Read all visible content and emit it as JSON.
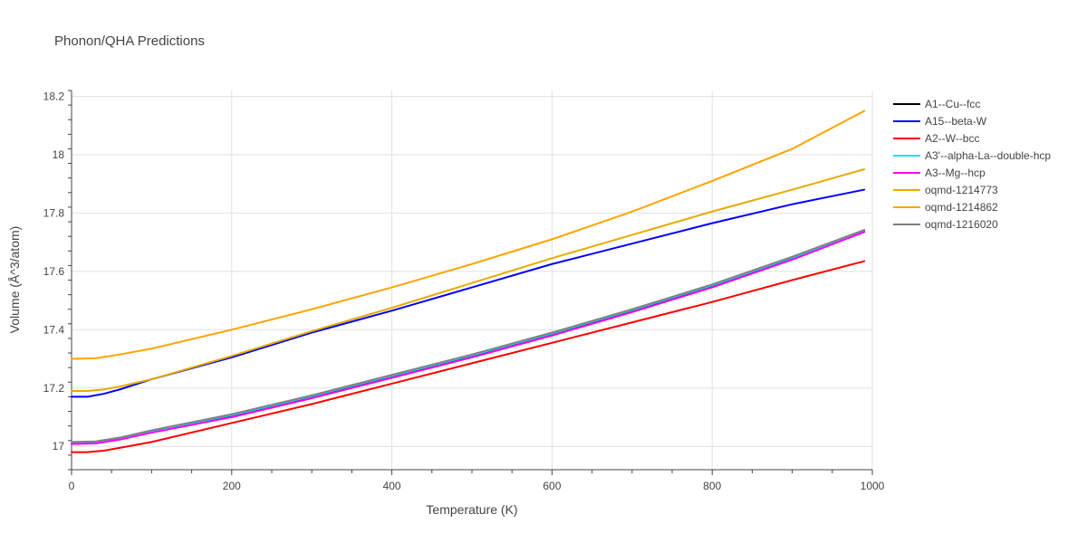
{
  "chart_data": {
    "type": "line",
    "title": "Phonon/QHA Predictions",
    "xlabel": "Temperature (K)",
    "ylabel": "Volume (Å^3/atom)",
    "xlim": [
      0,
      1000
    ],
    "ylim": [
      16.92,
      18.22
    ],
    "x_ticks": [
      0,
      200,
      400,
      600,
      800,
      1000
    ],
    "x_tick_labels": [
      "0",
      "200",
      "400",
      "600",
      "800",
      "1000"
    ],
    "y_ticks": [
      17.0,
      17.2,
      17.4,
      17.6,
      17.8,
      18.0,
      18.2
    ],
    "y_tick_labels": [
      "17",
      "17.2",
      "17.4",
      "17.6",
      "17.8",
      "18",
      "18.2"
    ],
    "grid": true,
    "legend_position": "right",
    "series": [
      {
        "name": "A1--Cu--fcc",
        "color": "#000000",
        "x": [
          0,
          30,
          60,
          100,
          200,
          300,
          400,
          500,
          600,
          700,
          800,
          900,
          990
        ],
        "y": [
          17.01,
          17.012,
          17.025,
          17.05,
          17.105,
          17.17,
          17.24,
          17.31,
          17.385,
          17.465,
          17.55,
          17.645,
          17.735
        ]
      },
      {
        "name": "A15--beta-W",
        "color": "#0000ff",
        "x": [
          0,
          20,
          40,
          60,
          100,
          200,
          300,
          400,
          500,
          600,
          700,
          800,
          900,
          990
        ],
        "y": [
          17.17,
          17.17,
          17.18,
          17.195,
          17.23,
          17.305,
          17.39,
          17.465,
          17.545,
          17.625,
          17.695,
          17.765,
          17.83,
          17.88
        ]
      },
      {
        "name": "A2--W--bcc",
        "color": "#ff0000",
        "x": [
          0,
          20,
          40,
          60,
          100,
          200,
          300,
          400,
          500,
          600,
          700,
          800,
          900,
          990
        ],
        "y": [
          16.98,
          16.98,
          16.985,
          16.995,
          17.015,
          17.08,
          17.145,
          17.215,
          17.285,
          17.355,
          17.425,
          17.495,
          17.57,
          17.635
        ]
      },
      {
        "name": "A3'--alpha-La--double-hcp",
        "color": "#00e5ee",
        "x": [
          0,
          30,
          60,
          100,
          200,
          300,
          400,
          500,
          600,
          700,
          800,
          900,
          990
        ],
        "y": [
          17.012,
          17.014,
          17.027,
          17.052,
          17.107,
          17.172,
          17.242,
          17.312,
          17.387,
          17.467,
          17.552,
          17.647,
          17.738
        ]
      },
      {
        "name": "A3--Mg--hcp",
        "color": "#ff00ff",
        "x": [
          0,
          30,
          60,
          100,
          200,
          300,
          400,
          500,
          600,
          700,
          800,
          900,
          990
        ],
        "y": [
          17.008,
          17.01,
          17.023,
          17.047,
          17.1,
          17.165,
          17.235,
          17.305,
          17.38,
          17.46,
          17.545,
          17.64,
          17.735
        ]
      },
      {
        "name": "oqmd-1214773",
        "color": "#e6ab02",
        "x": [
          0,
          20,
          40,
          60,
          100,
          200,
          300,
          400,
          500,
          600,
          700,
          800,
          900,
          990
        ],
        "y": [
          17.19,
          17.19,
          17.195,
          17.205,
          17.23,
          17.31,
          17.395,
          17.475,
          17.56,
          17.645,
          17.725,
          17.805,
          17.88,
          17.95
        ]
      },
      {
        "name": "oqmd-1214862",
        "color": "#ffa500",
        "x": [
          0,
          30,
          60,
          100,
          200,
          300,
          400,
          500,
          600,
          700,
          800,
          900,
          990
        ],
        "y": [
          17.3,
          17.302,
          17.315,
          17.335,
          17.4,
          17.47,
          17.545,
          17.625,
          17.71,
          17.805,
          17.91,
          18.02,
          18.15
        ]
      },
      {
        "name": "oqmd-1216020",
        "color": "#808080",
        "x": [
          0,
          30,
          60,
          100,
          200,
          300,
          400,
          500,
          600,
          700,
          800,
          900,
          990
        ],
        "y": [
          17.015,
          17.017,
          17.03,
          17.055,
          17.11,
          17.175,
          17.245,
          17.315,
          17.39,
          17.47,
          17.555,
          17.65,
          17.742
        ]
      }
    ]
  }
}
